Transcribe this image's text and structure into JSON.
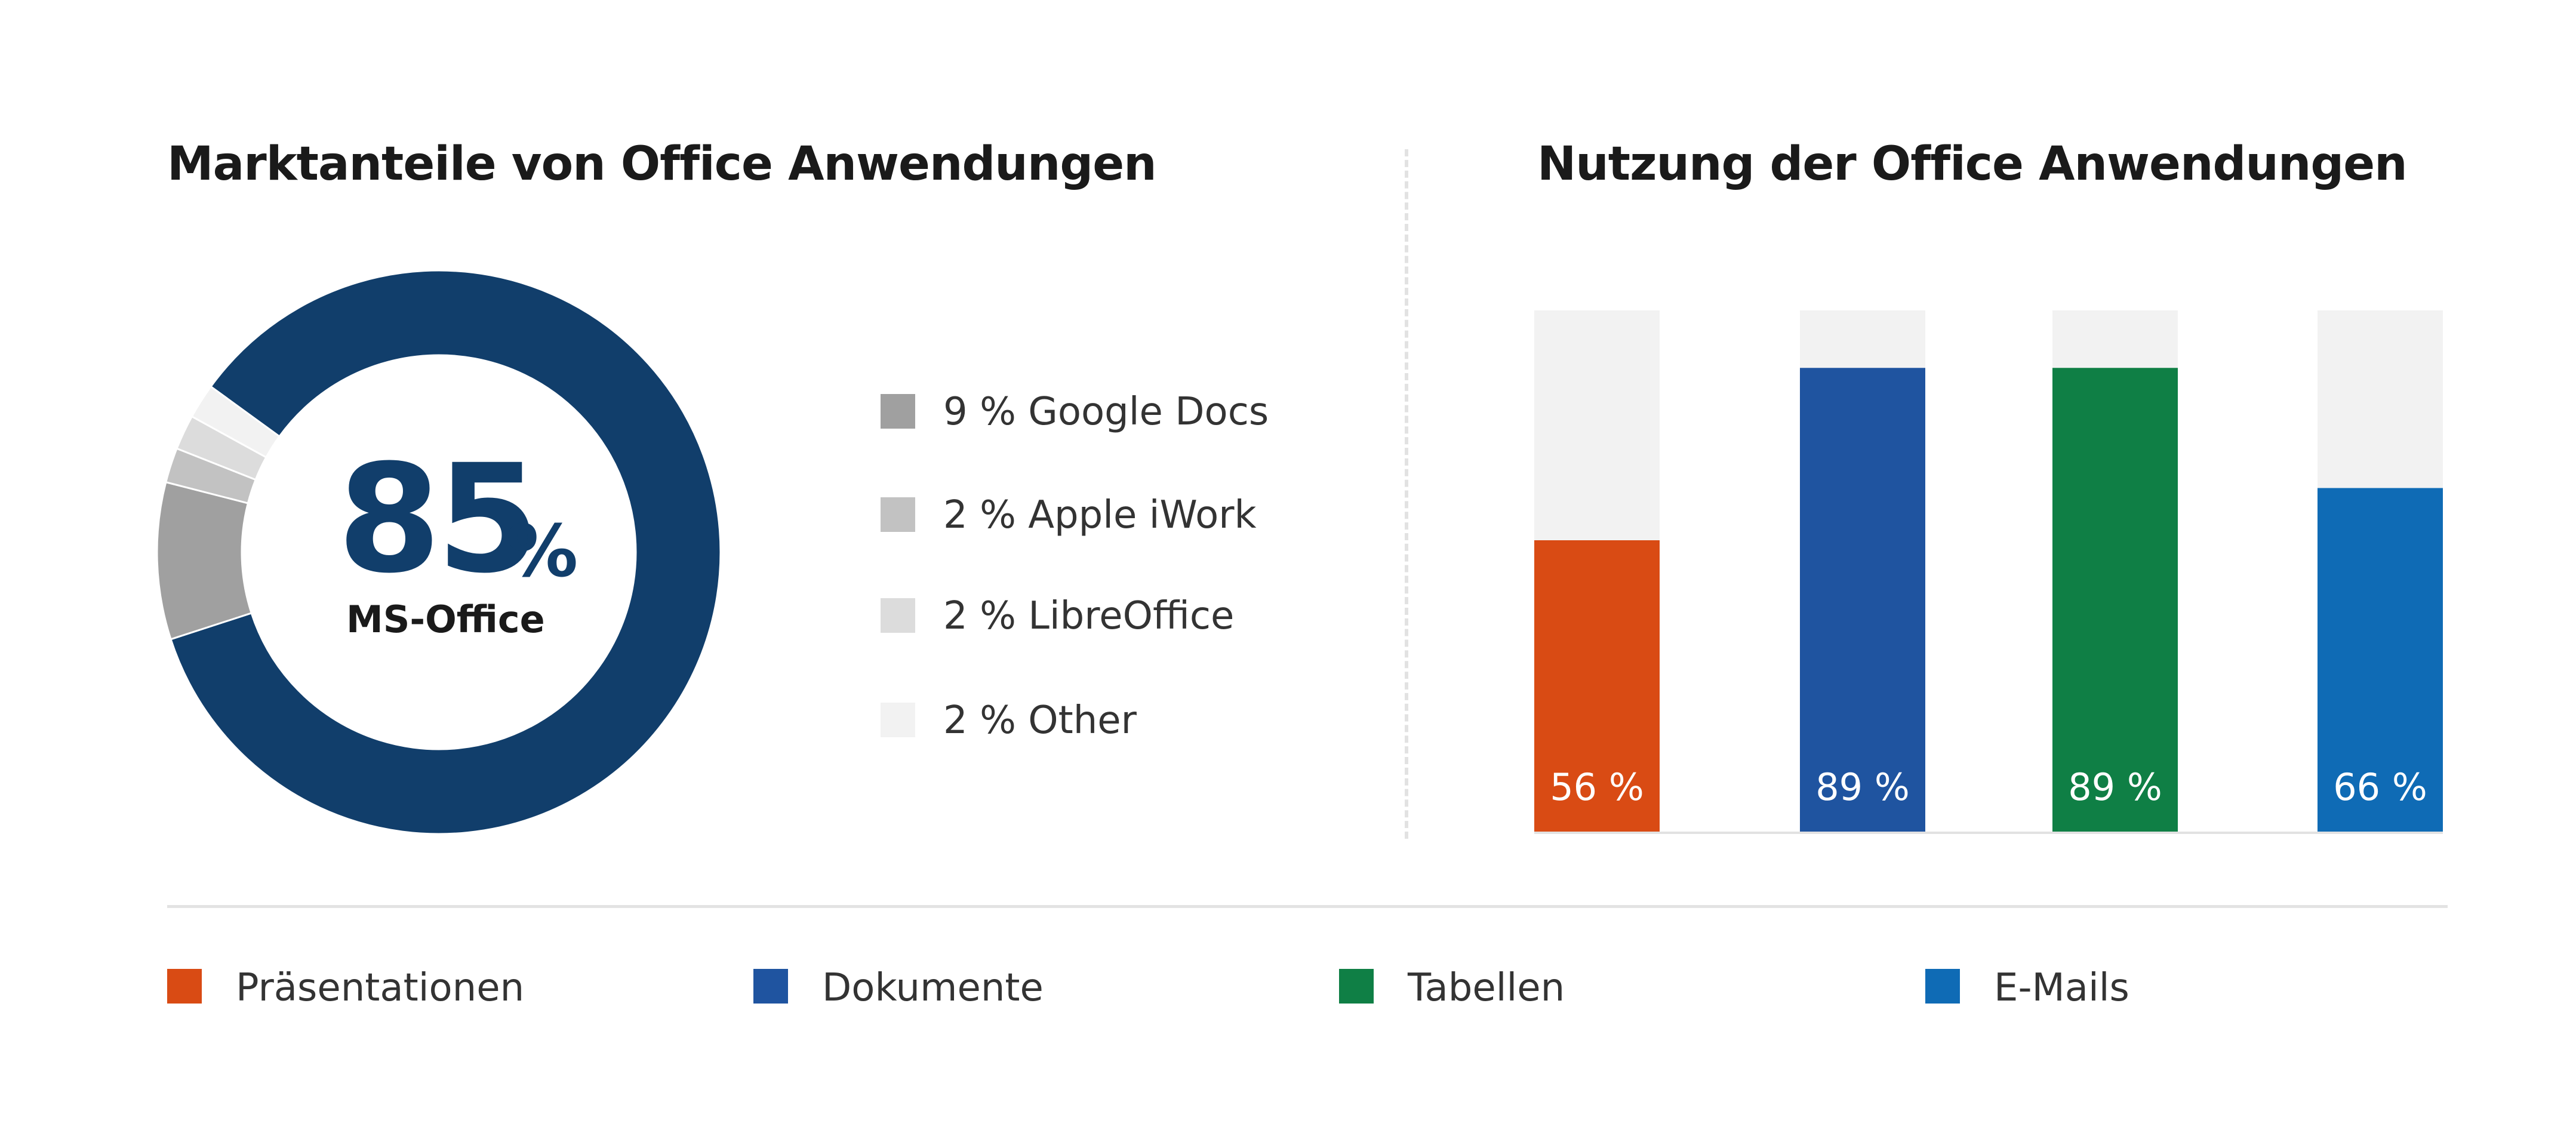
{
  "chart_data": [
    {
      "type": "pie",
      "title": "Marktanteile von Office Anwendungen",
      "center_value": "85",
      "center_unit": "%",
      "center_label": "MS-Office",
      "slices": [
        {
          "label": "MS-Office",
          "value": 85,
          "color": "#113e6b"
        },
        {
          "label": "Google Docs",
          "value": 9,
          "color": "#a0a0a0",
          "legend": "9 % Google Docs"
        },
        {
          "label": "Apple iWork",
          "value": 2,
          "color": "#c2c2c2",
          "legend": "2 % Apple iWork"
        },
        {
          "label": "LibreOffice",
          "value": 2,
          "color": "#dcdcdc",
          "legend": "2 % LibreOffice"
        },
        {
          "label": "Other",
          "value": 2,
          "color": "#f2f2f2",
          "legend": "2 % Other"
        }
      ]
    },
    {
      "type": "bar",
      "title": "Nutzung der Office Anwendungen",
      "ylim": [
        0,
        100
      ],
      "background_color": "#f2f2f2",
      "categories": [
        "Präsentationen",
        "Dokumente",
        "Tabellen",
        "E-Mails"
      ],
      "values": [
        56,
        89,
        89,
        66
      ],
      "value_labels": [
        "56 %",
        "89 %",
        "89 %",
        "66 %"
      ],
      "colors": [
        "#d94b14",
        "#1f54a0",
        "#0f7f45",
        "#0f6bb5"
      ]
    }
  ]
}
